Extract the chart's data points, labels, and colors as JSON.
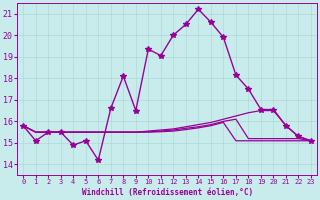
{
  "xlabel": "Windchill (Refroidissement éolien,°C)",
  "ylabel": "",
  "background_color": "#c8ecec",
  "grid_color": "#b0d8d8",
  "line_color": "#990099",
  "xlim": [
    -0.5,
    23.5
  ],
  "ylim": [
    13.5,
    21.5
  ],
  "xticks": [
    0,
    1,
    2,
    3,
    4,
    5,
    6,
    7,
    8,
    9,
    10,
    11,
    12,
    13,
    14,
    15,
    16,
    17,
    18,
    19,
    20,
    21,
    22,
    23
  ],
  "yticks": [
    14,
    15,
    16,
    17,
    18,
    19,
    20,
    21
  ],
  "series": [
    {
      "x": [
        0,
        1,
        2,
        3,
        4,
        5,
        6,
        7,
        8,
        9,
        10,
        11,
        12,
        13,
        14,
        15,
        16,
        17,
        18,
        19,
        20,
        21,
        22,
        23
      ],
      "y": [
        15.8,
        15.1,
        15.5,
        15.5,
        14.9,
        15.1,
        14.2,
        16.6,
        18.1,
        16.5,
        19.35,
        19.05,
        20.0,
        20.5,
        21.2,
        20.6,
        19.9,
        18.15,
        17.5,
        16.55,
        16.55,
        15.8,
        15.3,
        15.1
      ],
      "marker": "*",
      "markersize": 4,
      "linewidth": 1.0
    },
    {
      "x": [
        0,
        1,
        2,
        3,
        4,
        5,
        6,
        7,
        8,
        9,
        10,
        11,
        12,
        13,
        14,
        15,
        16,
        17,
        18,
        19,
        20,
        21,
        22,
        23
      ],
      "y": [
        15.8,
        15.5,
        15.5,
        15.5,
        15.5,
        15.5,
        15.5,
        15.5,
        15.5,
        15.5,
        15.55,
        15.6,
        15.65,
        15.75,
        15.85,
        15.95,
        16.1,
        16.25,
        16.4,
        16.5,
        16.5,
        15.8,
        15.3,
        15.1
      ],
      "marker": null,
      "linewidth": 0.9
    },
    {
      "x": [
        0,
        1,
        2,
        3,
        4,
        5,
        6,
        7,
        8,
        9,
        10,
        11,
        12,
        13,
        14,
        15,
        16,
        17,
        18,
        19,
        20,
        21,
        22,
        23
      ],
      "y": [
        15.8,
        15.5,
        15.5,
        15.5,
        15.5,
        15.5,
        15.5,
        15.5,
        15.5,
        15.5,
        15.52,
        15.55,
        15.6,
        15.68,
        15.75,
        15.85,
        16.0,
        16.1,
        15.2,
        15.2,
        15.2,
        15.2,
        15.2,
        15.1
      ],
      "marker": null,
      "linewidth": 0.9
    },
    {
      "x": [
        0,
        1,
        2,
        3,
        4,
        5,
        6,
        7,
        8,
        9,
        10,
        11,
        12,
        13,
        14,
        15,
        16,
        17,
        18,
        19,
        20,
        21,
        22,
        23
      ],
      "y": [
        15.8,
        15.5,
        15.5,
        15.5,
        15.5,
        15.5,
        15.5,
        15.5,
        15.5,
        15.5,
        15.5,
        15.52,
        15.55,
        15.62,
        15.7,
        15.8,
        15.95,
        15.1,
        15.1,
        15.1,
        15.1,
        15.1,
        15.1,
        15.1
      ],
      "marker": null,
      "linewidth": 0.9
    }
  ]
}
